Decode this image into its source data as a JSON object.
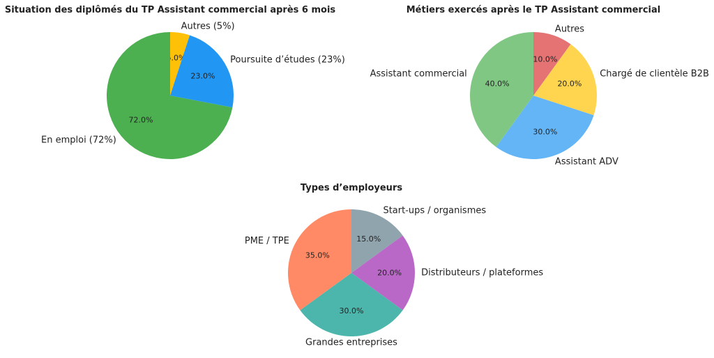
{
  "chart_data": [
    {
      "type": "pie",
      "title": "Situation des diplômés du TP Assistant commercial après 6 mois",
      "slices": [
        {
          "label": "Autres (5%)",
          "value": 5.0,
          "pct_label": "5.0%",
          "color": "#FFC107"
        },
        {
          "label": "Poursuite d’études (23%)",
          "value": 23.0,
          "pct_label": "23.0%",
          "color": "#2196F3"
        },
        {
          "label": "En emploi (72%)",
          "value": 72.0,
          "pct_label": "72.0%",
          "color": "#4CAF50"
        }
      ]
    },
    {
      "type": "pie",
      "title": "Métiers exercés après le TP Assistant commercial",
      "slices": [
        {
          "label": "Autres",
          "value": 10.0,
          "pct_label": "10.0%",
          "color": "#E57373"
        },
        {
          "label": "Chargé de clientèle B2B",
          "value": 20.0,
          "pct_label": "20.0%",
          "color": "#FFD54F"
        },
        {
          "label": "Assistant ADV",
          "value": 30.0,
          "pct_label": "30.0%",
          "color": "#64B5F6"
        },
        {
          "label": "Assistant commercial",
          "value": 40.0,
          "pct_label": "40.0%",
          "color": "#81C784"
        }
      ]
    },
    {
      "type": "pie",
      "title": "Types d’employeurs",
      "slices": [
        {
          "label": "Start-ups / organismes",
          "value": 15.0,
          "pct_label": "15.0%",
          "color": "#90A4AE"
        },
        {
          "label": "Distributeurs / plateformes",
          "value": 20.0,
          "pct_label": "20.0%",
          "color": "#BA68C8"
        },
        {
          "label": "Grandes entreprises",
          "value": 30.0,
          "pct_label": "30.0%",
          "color": "#4DB6AC"
        },
        {
          "label": "PME / TPE",
          "value": 35.0,
          "pct_label": "35.0%",
          "color": "#FF8A65"
        }
      ]
    }
  ]
}
